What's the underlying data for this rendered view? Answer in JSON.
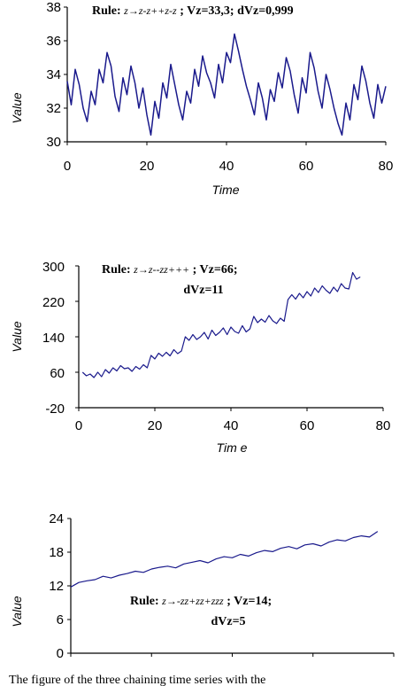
{
  "chart_data": [
    {
      "type": "line",
      "title": "",
      "xlabel": "Time",
      "ylabel": "Value",
      "xlim": [
        0,
        80
      ],
      "ylim": [
        30,
        38
      ],
      "x_ticks": [
        "0",
        "20",
        "40",
        "60",
        "80"
      ],
      "y_ticks": [
        "30",
        "32",
        "34",
        "36",
        "38"
      ],
      "annotation": {
        "prefix": "Rule: ",
        "rule": "z→z-z++z-z",
        "suffix": " ;  Vz=33,3; dVz=0,999"
      },
      "grid": false,
      "x": [
        0,
        1,
        2,
        3,
        4,
        5,
        6,
        7,
        8,
        9,
        10,
        11,
        12,
        13,
        14,
        15,
        16,
        17,
        18,
        19,
        20,
        21,
        22,
        23,
        24,
        25,
        26,
        27,
        28,
        29,
        30,
        31,
        32,
        33,
        34,
        35,
        36,
        37,
        38,
        39,
        40,
        41,
        42,
        43,
        44,
        45,
        46,
        47,
        48,
        49,
        50,
        51,
        52,
        53,
        54,
        55,
        56,
        57,
        58,
        59,
        60,
        61,
        62,
        63,
        64,
        65,
        66,
        67,
        68,
        69,
        70,
        71,
        72,
        73,
        74,
        75,
        76,
        77,
        78,
        79,
        80
      ],
      "series": [
        {
          "values": [
            33.6,
            32.2,
            34.3,
            33.4,
            32.0,
            31.2,
            33.0,
            32.2,
            34.3,
            33.5,
            35.3,
            34.5,
            32.7,
            31.8,
            33.8,
            32.8,
            34.5,
            33.5,
            32.0,
            33.2,
            31.6,
            30.4,
            32.4,
            31.4,
            33.5,
            32.6,
            34.6,
            33.4,
            32.2,
            31.3,
            33.0,
            32.3,
            34.3,
            33.3,
            35.1,
            34.1,
            33.5,
            32.6,
            34.6,
            33.5,
            35.3,
            34.7,
            36.4,
            35.4,
            34.3,
            33.3,
            32.5,
            31.6,
            33.5,
            32.6,
            31.3,
            33.1,
            32.4,
            34.1,
            33.2,
            35.0,
            34.2,
            32.8,
            31.7,
            33.8,
            32.9,
            35.3,
            34.4,
            33.0,
            32.0,
            34.0,
            33.1,
            32.0,
            31.1,
            30.4,
            32.3,
            31.3,
            33.4,
            32.5,
            34.5,
            33.6,
            32.3,
            31.4,
            33.4,
            32.3,
            33.3
          ]
        }
      ]
    },
    {
      "type": "line",
      "title": "",
      "xlabel": "Tim e",
      "ylabel": "Value",
      "xlim": [
        0,
        80
      ],
      "ylim": [
        -20,
        300
      ],
      "x_ticks": [
        "0",
        "20",
        "40",
        "60",
        "80"
      ],
      "y_ticks": [
        "-20",
        "60",
        "140",
        "220",
        "300"
      ],
      "annotation": {
        "prefix": "Rule: ",
        "rule": "z→z--zz+++",
        "suffix": " ;  Vz=66;",
        "line2": "dVz=11"
      },
      "grid": false,
      "x": [
        1,
        2,
        3,
        4,
        5,
        6,
        7,
        8,
        9,
        10,
        11,
        12,
        13,
        14,
        15,
        16,
        17,
        18,
        19,
        20,
        21,
        22,
        23,
        24,
        25,
        26,
        27,
        28,
        29,
        30,
        31,
        32,
        33,
        34,
        35,
        36,
        37,
        38,
        39,
        40,
        41,
        42,
        43,
        44,
        45,
        46,
        47,
        48,
        49,
        50,
        51,
        52,
        53,
        54,
        55,
        56,
        57,
        58,
        59,
        60,
        61,
        62,
        63,
        64,
        65,
        66,
        67,
        68,
        69,
        70,
        71,
        72,
        73,
        74
      ],
      "series": [
        {
          "values": [
            60,
            52,
            56,
            48,
            60,
            50,
            66,
            58,
            70,
            63,
            75,
            68,
            70,
            62,
            73,
            67,
            77,
            70,
            98,
            90,
            103,
            96,
            105,
            97,
            111,
            102,
            108,
            140,
            132,
            145,
            134,
            140,
            150,
            135,
            155,
            143,
            150,
            160,
            145,
            162,
            152,
            148,
            165,
            151,
            158,
            186,
            172,
            180,
            173,
            188,
            176,
            170,
            182,
            175,
            224,
            235,
            225,
            238,
            228,
            242,
            232,
            250,
            240,
            255,
            245,
            238,
            252,
            242,
            260,
            250,
            248,
            285,
            270,
            275
          ]
        }
      ]
    },
    {
      "type": "line",
      "title": "",
      "xlabel": "",
      "ylabel": "Value",
      "xlim": [
        0,
        80
      ],
      "ylim": [
        0,
        24
      ],
      "x_ticks": [],
      "y_ticks": [
        "0",
        "6",
        "12",
        "18",
        "24"
      ],
      "annotation": {
        "prefix": "Rule: ",
        "rule": "z→-zz+zz+zzz",
        "suffix": " ;  Vz=14;",
        "line2": "dVz=5"
      },
      "grid": false,
      "x": [
        0,
        2,
        4,
        6,
        8,
        10,
        12,
        14,
        16,
        18,
        20,
        22,
        24,
        26,
        28,
        30,
        32,
        34,
        36,
        38,
        40,
        42,
        44,
        46,
        48,
        50,
        52,
        54,
        56,
        58,
        60,
        62,
        64,
        66,
        68,
        70,
        72,
        74,
        76
      ],
      "series": [
        {
          "values": [
            11.8,
            12.6,
            12.9,
            13.1,
            13.7,
            13.4,
            13.9,
            14.2,
            14.6,
            14.4,
            15.0,
            15.3,
            15.5,
            15.2,
            15.9,
            16.2,
            16.5,
            16.1,
            16.8,
            17.2,
            17.0,
            17.6,
            17.3,
            17.9,
            18.3,
            18.1,
            18.7,
            19.0,
            18.6,
            19.3,
            19.5,
            19.1,
            19.8,
            20.2,
            20.0,
            20.6,
            20.9,
            20.7,
            21.7
          ]
        }
      ]
    }
  ],
  "caption": "The figure of the three chaining time series with the"
}
